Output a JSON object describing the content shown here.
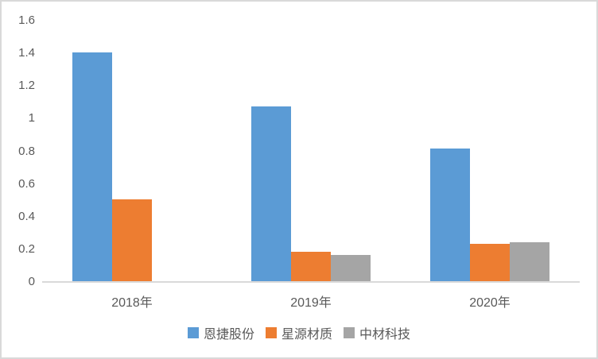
{
  "chart_data": {
    "type": "bar",
    "title": "",
    "xlabel": "",
    "ylabel": "",
    "categories": [
      "2018年",
      "2019年",
      "2020年"
    ],
    "series": [
      {
        "name": "恩捷股份",
        "color": "#5B9BD5",
        "values": [
          1.4,
          1.07,
          0.81
        ]
      },
      {
        "name": "星源材质",
        "color": "#ED7D31",
        "values": [
          0.5,
          0.18,
          0.23
        ]
      },
      {
        "name": "中材科技",
        "color": "#A5A5A5",
        "values": [
          0,
          0.16,
          0.24
        ]
      }
    ],
    "ylim": [
      0,
      1.6
    ],
    "yticks": [
      "0",
      "0.2",
      "0.4",
      "0.6",
      "0.8",
      "1",
      "1.2",
      "1.4",
      "1.6"
    ],
    "grid": false,
    "legend_position": "bottom"
  },
  "colors": {
    "axis_line": "#D9D9D9",
    "frame_border": "#D9D9D9",
    "tick_text": "#595959",
    "background": "#FFFFFF"
  }
}
